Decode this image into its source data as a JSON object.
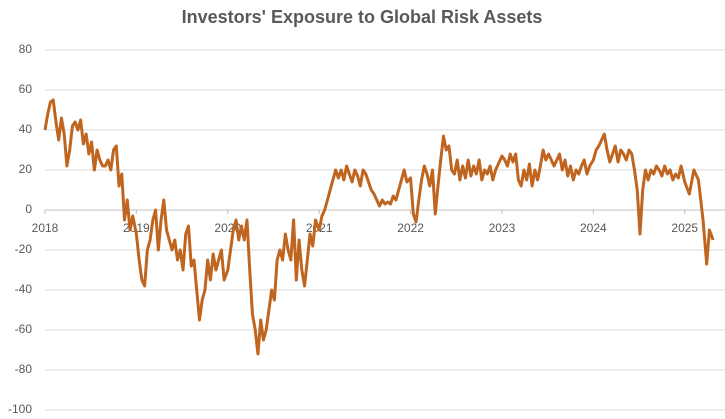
{
  "chart_data": {
    "type": "line",
    "title": "Investors' Exposure to Global Risk Assets",
    "x": [
      2018.0,
      2018.03,
      2018.06,
      2018.09,
      2018.12,
      2018.15,
      2018.18,
      2018.21,
      2018.24,
      2018.27,
      2018.3,
      2018.33,
      2018.36,
      2018.39,
      2018.42,
      2018.45,
      2018.48,
      2018.51,
      2018.54,
      2018.57,
      2018.6,
      2018.63,
      2018.66,
      2018.69,
      2018.72,
      2018.75,
      2018.78,
      2018.81,
      2018.84,
      2018.87,
      2018.9,
      2018.93,
      2018.96,
      2019.0,
      2019.03,
      2019.06,
      2019.09,
      2019.12,
      2019.15,
      2019.18,
      2019.21,
      2019.24,
      2019.27,
      2019.3,
      2019.33,
      2019.36,
      2019.39,
      2019.42,
      2019.45,
      2019.48,
      2019.51,
      2019.54,
      2019.57,
      2019.6,
      2019.63,
      2019.66,
      2019.69,
      2019.72,
      2019.75,
      2019.78,
      2019.81,
      2019.84,
      2019.87,
      2019.9,
      2019.93,
      2019.96,
      2020.0,
      2020.03,
      2020.06,
      2020.09,
      2020.12,
      2020.15,
      2020.18,
      2020.21,
      2020.24,
      2020.27,
      2020.3,
      2020.33,
      2020.36,
      2020.39,
      2020.42,
      2020.45,
      2020.48,
      2020.51,
      2020.54,
      2020.57,
      2020.6,
      2020.63,
      2020.66,
      2020.69,
      2020.72,
      2020.75,
      2020.78,
      2020.81,
      2020.84,
      2020.87,
      2020.9,
      2020.93,
      2020.96,
      2021.0,
      2021.03,
      2021.06,
      2021.09,
      2021.12,
      2021.15,
      2021.18,
      2021.21,
      2021.24,
      2021.27,
      2021.3,
      2021.33,
      2021.36,
      2021.39,
      2021.42,
      2021.45,
      2021.48,
      2021.51,
      2021.54,
      2021.57,
      2021.6,
      2021.63,
      2021.66,
      2021.69,
      2021.72,
      2021.75,
      2021.78,
      2021.81,
      2021.84,
      2021.87,
      2021.9,
      2021.93,
      2021.96,
      2022.0,
      2022.03,
      2022.06,
      2022.09,
      2022.12,
      2022.15,
      2022.18,
      2022.21,
      2022.24,
      2022.27,
      2022.3,
      2022.33,
      2022.36,
      2022.39,
      2022.42,
      2022.45,
      2022.48,
      2022.51,
      2022.54,
      2022.57,
      2022.6,
      2022.63,
      2022.66,
      2022.69,
      2022.72,
      2022.75,
      2022.78,
      2022.81,
      2022.84,
      2022.87,
      2022.9,
      2022.93,
      2022.96,
      2023.0,
      2023.03,
      2023.06,
      2023.09,
      2023.12,
      2023.15,
      2023.18,
      2023.21,
      2023.24,
      2023.27,
      2023.3,
      2023.33,
      2023.36,
      2023.39,
      2023.42,
      2023.45,
      2023.48,
      2023.51,
      2023.54,
      2023.57,
      2023.6,
      2023.63,
      2023.66,
      2023.69,
      2023.72,
      2023.75,
      2023.78,
      2023.81,
      2023.84,
      2023.87,
      2023.9,
      2023.93,
      2023.96,
      2024.0,
      2024.03,
      2024.06,
      2024.09,
      2024.12,
      2024.15,
      2024.18,
      2024.21,
      2024.24,
      2024.27,
      2024.3,
      2024.33,
      2024.36,
      2024.39,
      2024.42,
      2024.45,
      2024.48,
      2024.51,
      2024.54,
      2024.57,
      2024.6,
      2024.63,
      2024.66,
      2024.69,
      2024.72,
      2024.75,
      2024.78,
      2024.81,
      2024.84,
      2024.87,
      2024.9,
      2024.93,
      2024.96,
      2025.0,
      2025.05,
      2025.1,
      2025.15,
      2025.2,
      2025.24,
      2025.27,
      2025.31
    ],
    "values": [
      40,
      48,
      54,
      55,
      44,
      35,
      46,
      38,
      22,
      30,
      42,
      44,
      40,
      45,
      33,
      38,
      28,
      34,
      20,
      30,
      25,
      22,
      22,
      25,
      20,
      30,
      32,
      12,
      18,
      -5,
      5,
      -10,
      -3,
      -12,
      -25,
      -35,
      -38,
      -20,
      -15,
      -5,
      0,
      -20,
      -5,
      5,
      -10,
      -15,
      -20,
      -15,
      -25,
      -20,
      -30,
      -12,
      -8,
      -28,
      -25,
      -40,
      -55,
      -45,
      -40,
      -25,
      -35,
      -22,
      -30,
      -25,
      -20,
      -35,
      -30,
      -20,
      -10,
      -5,
      -15,
      -8,
      -15,
      -5,
      -30,
      -52,
      -60,
      -72,
      -55,
      -65,
      -60,
      -50,
      -40,
      -45,
      -25,
      -20,
      -25,
      -12,
      -20,
      -25,
      -5,
      -35,
      -15,
      -30,
      -38,
      -25,
      -12,
      -18,
      -5,
      -10,
      -3,
      0,
      5,
      10,
      15,
      20,
      16,
      20,
      15,
      22,
      18,
      14,
      20,
      17,
      12,
      20,
      18,
      14,
      10,
      8,
      5,
      2,
      5,
      3,
      4,
      3,
      7,
      5,
      10,
      15,
      20,
      14,
      16,
      -2,
      -6,
      5,
      15,
      22,
      18,
      12,
      20,
      -2,
      12,
      25,
      37,
      30,
      32,
      20,
      18,
      25,
      15,
      22,
      16,
      25,
      17,
      22,
      18,
      25,
      15,
      20,
      18,
      22,
      15,
      20,
      23,
      27,
      25,
      22,
      28,
      24,
      28,
      15,
      12,
      20,
      15,
      23,
      12,
      20,
      15,
      22,
      30,
      25,
      28,
      25,
      22,
      25,
      28,
      20,
      25,
      17,
      22,
      15,
      20,
      18,
      22,
      25,
      18,
      22,
      25,
      30,
      32,
      35,
      38,
      30,
      24,
      28,
      32,
      24,
      30,
      28,
      25,
      30,
      28,
      20,
      10,
      -12,
      10,
      20,
      15,
      20,
      18,
      22,
      20,
      17,
      22,
      18,
      20,
      15,
      18,
      16,
      22,
      14,
      8,
      20,
      15,
      -5,
      -27,
      -10,
      -15
    ],
    "color": "#c0651f",
    "xlim": [
      2018,
      2025.75
    ],
    "xticks": [
      2018,
      2019,
      2020,
      2021,
      2022,
      2023,
      2024,
      2025
    ],
    "ylim": [
      -100,
      80
    ],
    "yticks": [
      -100,
      -80,
      -60,
      -40,
      -20,
      0,
      20,
      40,
      60,
      80
    ],
    "grid": true
  }
}
